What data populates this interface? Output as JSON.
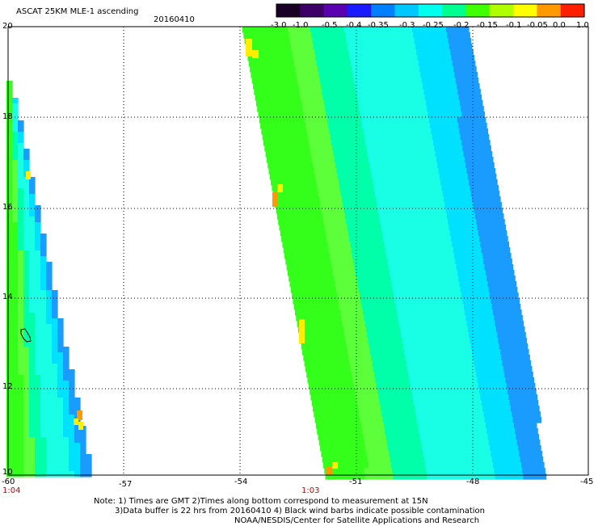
{
  "header": {
    "title": "ASCAT 25KM MLE-1 ascending",
    "date": "20160410"
  },
  "colorbar": {
    "tick_labels": [
      "-3.0",
      "-1.0",
      "-0.5",
      "-0.4",
      "-0.35",
      "-0.3",
      "-0.25",
      "-0.2",
      "-0.15",
      "-0.1",
      "-0.05",
      "0.0",
      "1.0"
    ],
    "colors": [
      "#1a0026",
      "#3d0066",
      "#5a00b0",
      "#1a1aff",
      "#0080ff",
      "#00c8ff",
      "#00ffee",
      "#00ff90",
      "#40ff00",
      "#b0ff00",
      "#ffff00",
      "#ff9900",
      "#ff2000"
    ]
  },
  "map": {
    "lon_labels": [
      "-60",
      "-57",
      "-54",
      "-51",
      "-48",
      "-45"
    ],
    "lat_labels": [
      "20",
      "18",
      "16",
      "14",
      "12",
      "10"
    ],
    "time_labels": [
      "1:04",
      "1:03"
    ],
    "swath_colors": {
      "green": "#33ff1a",
      "light_green": "#5cff3a",
      "cyan_green": "#00ffa8",
      "cyan": "#19ffe6",
      "light_blue": "#00e0ff",
      "blue": "#1a9cff",
      "yellow": "#ffee00",
      "orange": "#ff9900"
    },
    "land_outline_color": "#000000"
  },
  "footer": {
    "line1": "Note: 1) Times are GMT 2)Times along bottom correspond to measurement at 15N",
    "line2": "3)Data buffer is 22 hrs from 20160410 4) Black wind barbs indicate possible contamination",
    "line3": "NOAA/NESDIS/Center for Satellite Applications and Research"
  }
}
